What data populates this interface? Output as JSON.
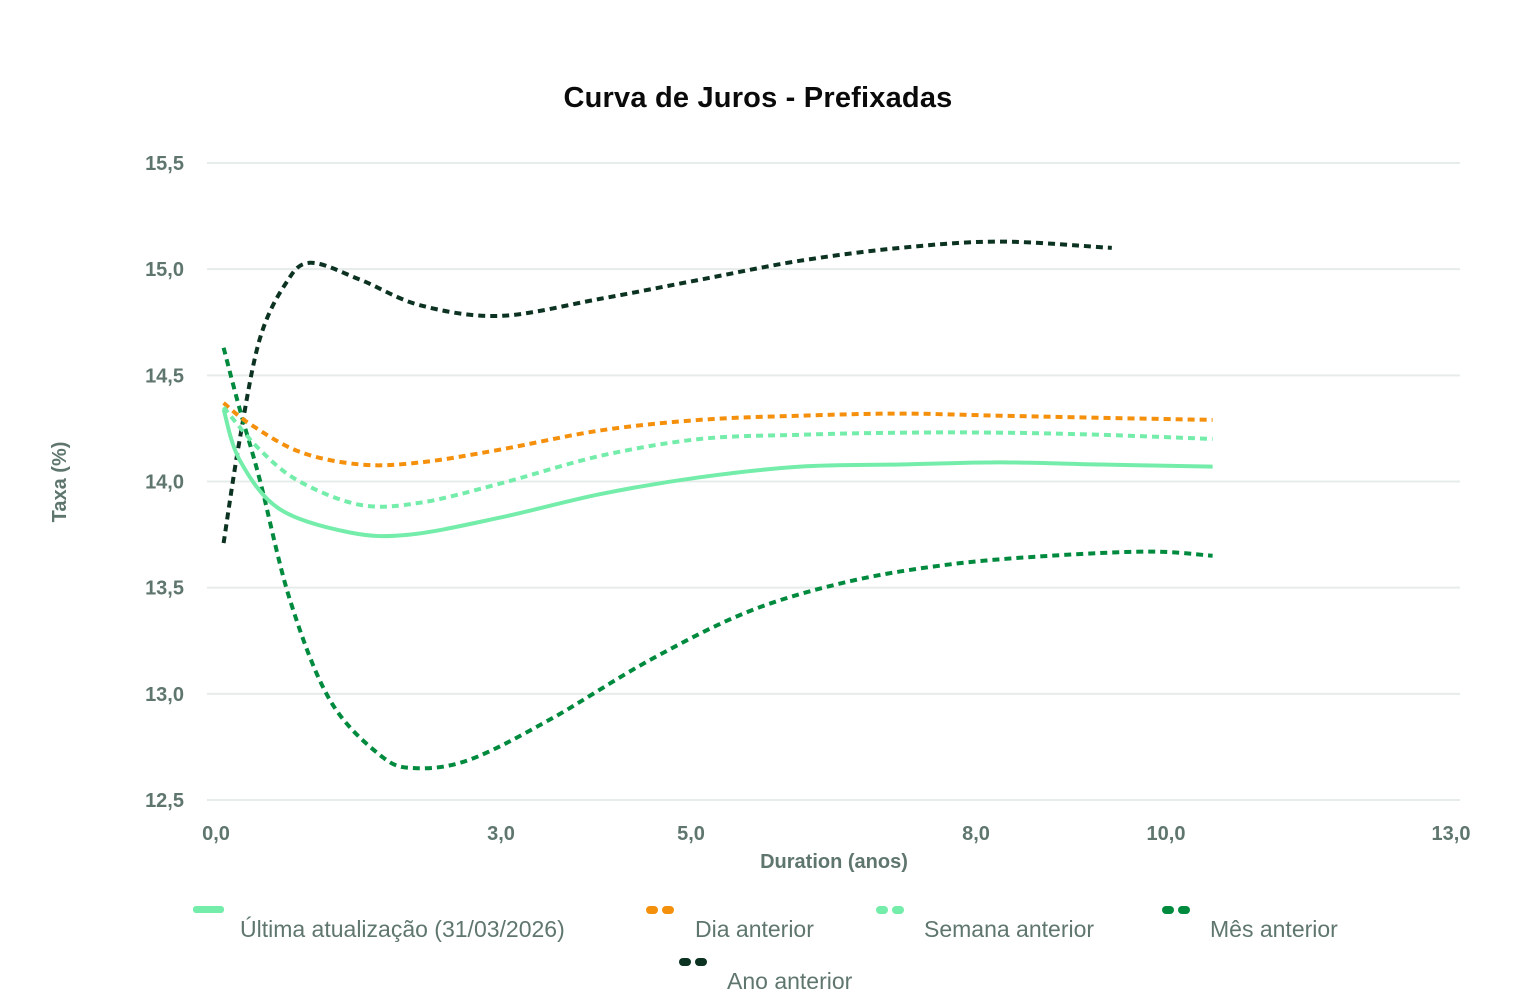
{
  "chart_data": {
    "type": "line",
    "title": "Curva de Juros - Prefixadas",
    "xlabel": "Duration (anos)",
    "ylabel": "Taxa (%)",
    "xlim": [
      0,
      13
    ],
    "ylim": [
      12.5,
      15.5
    ],
    "x_ticks": [
      "0,0",
      "3,0",
      "5,0",
      "8,0",
      "10,0",
      "13,0"
    ],
    "x_tick_values": [
      0,
      3,
      5,
      8,
      10,
      13
    ],
    "y_ticks": [
      "15,5",
      "15,0",
      "14,5",
      "14,0",
      "13,5",
      "13,0",
      "12,5"
    ],
    "y_tick_values": [
      15.5,
      15.0,
      14.5,
      14.0,
      13.5,
      13.0,
      12.5
    ],
    "grid": "horizontal",
    "legend_position": "bottom",
    "series": [
      {
        "name": "Última atualização (31/03/2026)",
        "color": "#74EDAA",
        "style": "solid",
        "x": [
          0.08,
          0.25,
          0.67,
          1.41,
          2.04,
          2.99,
          4.04,
          5.09,
          6.15,
          7.2,
          8.25,
          9.31,
          10.49
        ],
        "values": [
          14.34,
          14.1,
          13.87,
          13.76,
          13.75,
          13.83,
          13.94,
          14.02,
          14.07,
          14.08,
          14.09,
          14.08,
          14.07
        ]
      },
      {
        "name": "Dia anterior",
        "color": "#F5900C",
        "style": "dotted",
        "x": [
          0.08,
          0.36,
          0.88,
          1.52,
          2.15,
          2.99,
          4.04,
          5.09,
          6.15,
          7.2,
          8.25,
          9.31,
          10.49
        ],
        "values": [
          14.37,
          14.27,
          14.14,
          14.08,
          14.09,
          14.15,
          14.24,
          14.29,
          14.31,
          14.32,
          14.31,
          14.3,
          14.29
        ]
      },
      {
        "name": "Semana anterior",
        "color": "#74EDAA",
        "style": "dotted",
        "x": [
          0.08,
          0.46,
          0.88,
          1.52,
          2.15,
          2.99,
          4.04,
          5.09,
          6.15,
          7.2,
          8.25,
          9.31,
          10.49
        ],
        "values": [
          14.35,
          14.15,
          14.0,
          13.89,
          13.9,
          13.99,
          14.12,
          14.2,
          14.22,
          14.23,
          14.23,
          14.22,
          14.2
        ]
      },
      {
        "name": "Mês anterior",
        "color": "#008A3E",
        "style": "dotted",
        "x": [
          0.08,
          0.25,
          0.46,
          0.78,
          1.2,
          1.73,
          2.09,
          2.67,
          3.52,
          4.57,
          5.62,
          6.67,
          7.73,
          8.78,
          9.83,
          10.49
        ],
        "values": [
          14.63,
          14.34,
          14.01,
          13.44,
          12.97,
          12.71,
          12.65,
          12.69,
          12.88,
          13.16,
          13.39,
          13.53,
          13.61,
          13.65,
          13.67,
          13.65
        ]
      },
      {
        "name": "Ano anterior",
        "color": "#0C3322",
        "style": "dotted",
        "x": [
          0.08,
          0.25,
          0.46,
          0.73,
          0.99,
          1.52,
          2.15,
          2.99,
          4.04,
          5.09,
          6.15,
          7.2,
          8.25,
          9.43
        ],
        "values": [
          13.71,
          14.2,
          14.67,
          14.93,
          15.03,
          14.95,
          14.83,
          14.78,
          14.86,
          14.95,
          15.04,
          15.1,
          15.13,
          15.1
        ]
      }
    ]
  },
  "legend": {
    "items": [
      {
        "label": "Última atualização (31/03/2026)",
        "color": "#74EDAA",
        "swatch": "solid-bar"
      },
      {
        "label": "Dia anterior",
        "color": "#F5900C",
        "swatch": "dots"
      },
      {
        "label": "Semana anterior",
        "color": "#74EDAA",
        "swatch": "dots"
      },
      {
        "label": "Mês anterior",
        "color": "#008A3E",
        "swatch": "dots"
      },
      {
        "label": "Ano anterior",
        "color": "#0C3322",
        "swatch": "dots"
      }
    ]
  }
}
